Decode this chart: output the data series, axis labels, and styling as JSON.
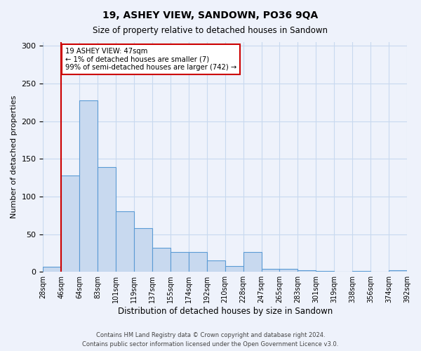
{
  "title": "19, ASHEY VIEW, SANDOWN, PO36 9QA",
  "subtitle": "Size of property relative to detached houses in Sandown",
  "xlabel": "Distribution of detached houses by size in Sandown",
  "ylabel": "Number of detached properties",
  "bin_labels": [
    "28sqm",
    "46sqm",
    "64sqm",
    "83sqm",
    "101sqm",
    "119sqm",
    "137sqm",
    "155sqm",
    "174sqm",
    "192sqm",
    "210sqm",
    "228sqm",
    "247sqm",
    "265sqm",
    "283sqm",
    "301sqm",
    "319sqm",
    "338sqm",
    "356sqm",
    "374sqm",
    "392sqm"
  ],
  "bar_heights": [
    7,
    128,
    228,
    139,
    80,
    58,
    32,
    26,
    26,
    15,
    8,
    26,
    4,
    4,
    2,
    1,
    0,
    1,
    0,
    2
  ],
  "bar_color": "#c8d9ef",
  "bar_edge_color": "#5b9bd5",
  "vline_color": "#cc0000",
  "annotation_title": "19 ASHEY VIEW: 47sqm",
  "annotation_line1": "← 1% of detached houses are smaller (7)",
  "annotation_line2": "99% of semi-detached houses are larger (742) →",
  "annotation_box_color": "#cc0000",
  "ylim": [
    0,
    305
  ],
  "yticks": [
    0,
    50,
    100,
    150,
    200,
    250,
    300
  ],
  "footer1": "Contains HM Land Registry data © Crown copyright and database right 2024.",
  "footer2": "Contains public sector information licensed under the Open Government Licence v3.0.",
  "background_color": "#eef2fb",
  "grid_color": "#c8d9ef"
}
